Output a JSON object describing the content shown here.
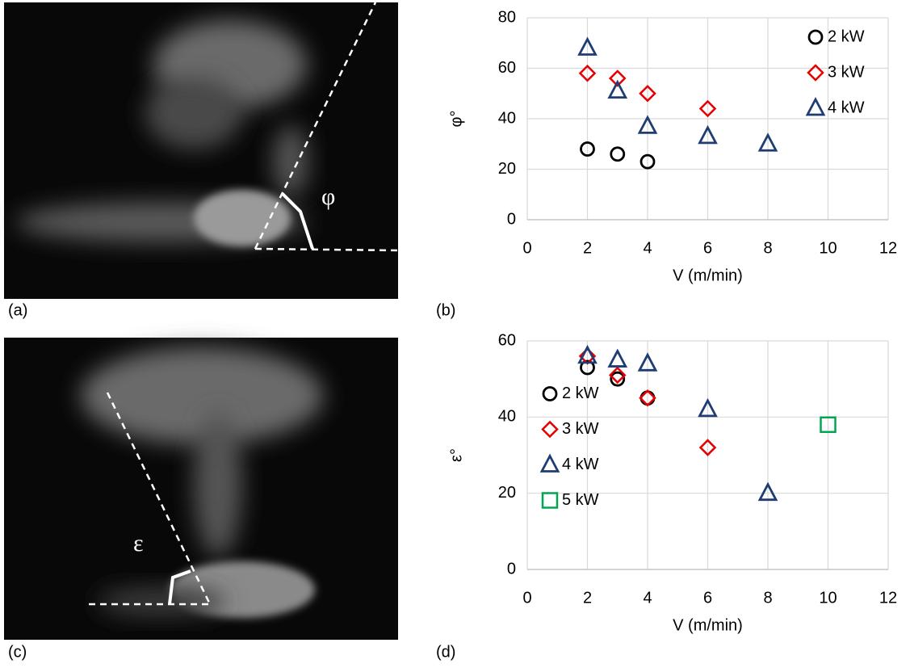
{
  "panels": [
    {
      "label": "(a)",
      "angle_label": "φ"
    },
    {
      "label": "(b)"
    },
    {
      "label": "(c)",
      "angle_label": "ε"
    },
    {
      "label": "(d)"
    }
  ],
  "chart_data": [
    {
      "type": "scatter",
      "x_label": "V (m/min)",
      "y_label": "φ°",
      "xlim": [
        0,
        12
      ],
      "xticks": [
        0,
        2,
        4,
        6,
        8,
        10,
        12
      ],
      "ylim": [
        0,
        80
      ],
      "yticks": [
        0,
        20,
        40,
        60,
        80
      ],
      "grid": true,
      "legend": "upper right",
      "series": [
        {
          "name": "2 kW",
          "color": "#000000",
          "marker": "circle",
          "x": [
            2,
            3,
            4
          ],
          "values": [
            28,
            26,
            23
          ]
        },
        {
          "name": "3 kW",
          "color": "#e60000",
          "marker": "diamond",
          "x": [
            2,
            3,
            4,
            6
          ],
          "values": [
            58,
            56,
            50,
            44
          ]
        },
        {
          "name": "4 kW",
          "color": "#1f3d73",
          "marker": "triangle",
          "x": [
            2,
            3,
            4,
            6,
            8
          ],
          "values": [
            68,
            51,
            37,
            33,
            30
          ]
        }
      ]
    },
    {
      "type": "scatter",
      "x_label": "V (m/min)",
      "y_label": "ε°",
      "xlim": [
        0,
        12
      ],
      "xticks": [
        0,
        2,
        4,
        6,
        8,
        10,
        12
      ],
      "ylim": [
        0,
        60
      ],
      "yticks": [
        0,
        20,
        40,
        60
      ],
      "grid": true,
      "legend": "center left",
      "series": [
        {
          "name": "2 kW",
          "color": "#000000",
          "marker": "circle",
          "x": [
            2,
            3,
            4
          ],
          "values": [
            53,
            50,
            45
          ]
        },
        {
          "name": "3 kW",
          "color": "#e60000",
          "marker": "diamond",
          "x": [
            2,
            3,
            4,
            6
          ],
          "values": [
            56,
            51,
            45,
            32
          ]
        },
        {
          "name": "4 kW",
          "color": "#1f3d73",
          "marker": "triangle",
          "x": [
            2,
            3,
            4,
            6,
            8
          ],
          "values": [
            56,
            55,
            54,
            42,
            20
          ]
        },
        {
          "name": "5 kW",
          "color": "#00a550",
          "marker": "square",
          "x": [
            10
          ],
          "values": [
            38
          ]
        }
      ]
    }
  ]
}
